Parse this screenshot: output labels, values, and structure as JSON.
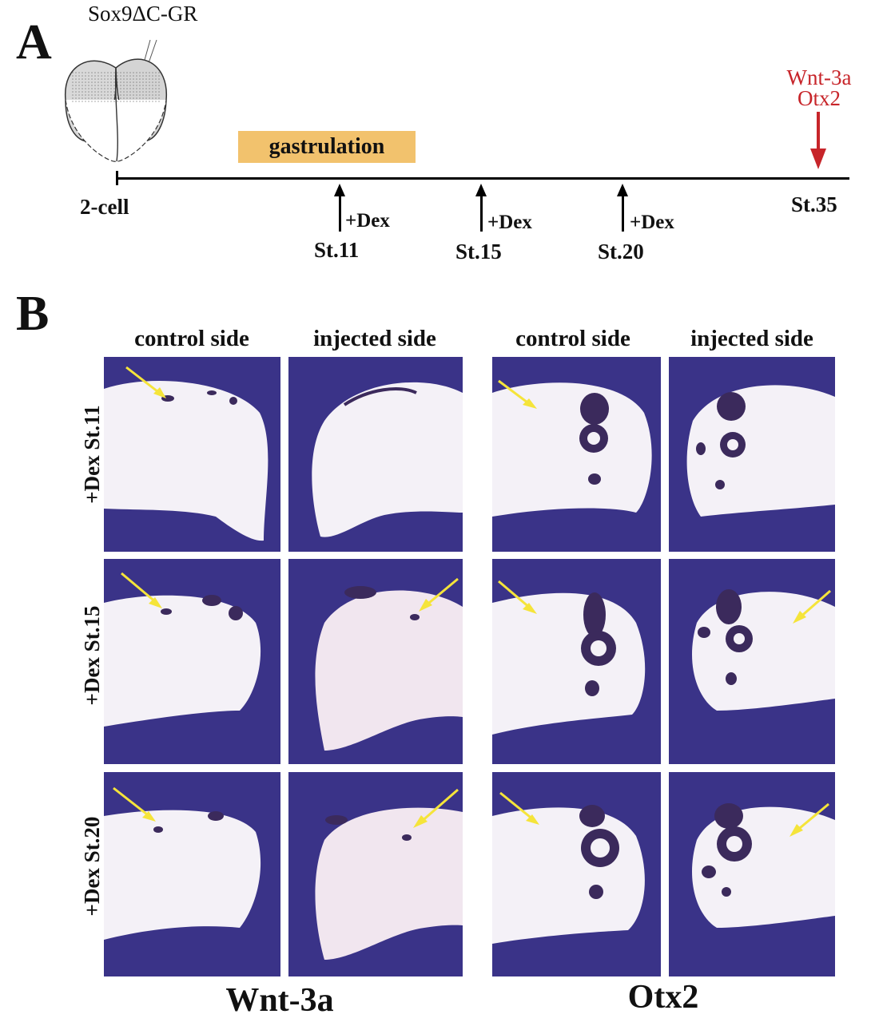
{
  "figure": {
    "panel_a_label": "A",
    "panel_b_label": "B"
  },
  "timeline": {
    "construct_label": "Sox9ΔC-GR",
    "gastrulation_label": "gastrulation",
    "start_label": "2-cell",
    "end_label": "St.35",
    "readout_genes": [
      "Wnt-3a",
      "Otx2"
    ],
    "treatments": [
      {
        "stage": "St.11",
        "treatment": "+Dex"
      },
      {
        "stage": "St.15",
        "treatment": "+Dex"
      },
      {
        "stage": "St.20",
        "treatment": "+Dex"
      }
    ]
  },
  "grid": {
    "column_headers": [
      "control side",
      "injected side",
      "control side",
      "injected side"
    ],
    "row_headers": [
      "+Dex St.11",
      "+Dex St.15",
      "+Dex St.20"
    ],
    "gene_labels": [
      "Wnt-3a",
      "Otx2"
    ]
  },
  "colors": {
    "background_stain": "#3a3388",
    "embryo": "#f5f2f8",
    "gastrulation_box": "#f2c26d",
    "readout_red": "#c7252a",
    "indicator_arrow": "#f5e43a"
  }
}
